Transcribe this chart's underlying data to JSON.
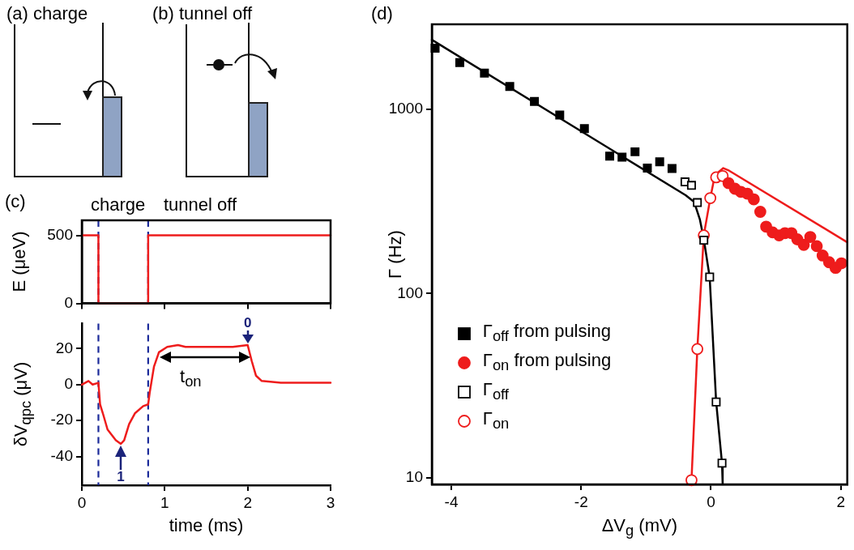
{
  "chart_data": [
    {
      "type": "other",
      "title": "(a) charge"
    },
    {
      "type": "other",
      "title": "(b) tunnel off"
    },
    {
      "type": "line",
      "title": "(c)",
      "ylabel": "E (μeV)",
      "x": [
        0,
        0.2,
        0.2,
        0.8,
        0.8,
        3
      ],
      "series": [
        {
          "color": "#ee1c1c",
          "values": [
            500,
            500,
            0,
            0,
            500,
            500
          ]
        }
      ],
      "xlim": [
        0,
        3
      ],
      "xticks": [
        0,
        1,
        2,
        3
      ],
      "ylim": [
        0,
        610
      ],
      "yticks": [
        0,
        500
      ],
      "tick_labels": "y",
      "grid": false,
      "ref_lines": [
        {
          "axis": "x",
          "value": 0.2,
          "color": "#1b2a9a",
          "line_style": "dashed"
        },
        {
          "axis": "x",
          "value": 0.8,
          "color": "#1b2a9a",
          "line_style": "dashed"
        }
      ],
      "annotations": [
        "charge",
        "tunnel off"
      ]
    },
    {
      "type": "line",
      "xlabel": "time (ms)",
      "ylabel": "δV$_{qpc}$ (μV)",
      "x": [
        0,
        0.08,
        0.13,
        0.2,
        0.22,
        0.26,
        0.31,
        0.41,
        0.47,
        0.51,
        0.57,
        0.64,
        0.74,
        0.8,
        0.82,
        0.87,
        0.93,
        1.03,
        1.16,
        1.25,
        1.45,
        1.62,
        1.82,
        2.0,
        2.05,
        2.1,
        2.17,
        2.4,
        2.7,
        3
      ],
      "series": [
        {
          "color": "#ee1c1c",
          "values": [
            0,
            2,
            0,
            1,
            -11,
            -17,
            -25,
            -31,
            -33,
            -31,
            -22,
            -16,
            -12,
            -11,
            -4,
            10,
            18,
            21,
            22,
            21,
            21,
            21,
            21,
            22,
            13,
            5,
            2,
            1,
            1,
            1
          ]
        }
      ],
      "xlim": [
        0,
        3
      ],
      "xticks": [
        0,
        1,
        2,
        3
      ],
      "ylim": [
        -56,
        34
      ],
      "yticks": [
        -40,
        -20,
        0,
        20
      ],
      "grid": false,
      "ref_lines": [
        {
          "axis": "x",
          "value": 0.2,
          "color": "#1b2a9a",
          "line_style": "dashed"
        },
        {
          "axis": "x",
          "value": 0.8,
          "color": "#1b2a9a",
          "line_style": "dashed"
        }
      ],
      "annotations": [
        {
          "text": "0",
          "x": 2,
          "y": 22
        },
        {
          "text": "1",
          "x": 0.47,
          "y": -33
        },
        "t$_{on}$"
      ]
    },
    {
      "type": "scatter",
      "title": "(d)",
      "xlabel": "ΔV$_{g}$  (mV)",
      "ylabel": "Γ  (Hz)",
      "log": "y",
      "grid": false,
      "legend": "bottom left",
      "xlim": [
        -4.3,
        2.1
      ],
      "xticks": [
        -4,
        -2,
        0,
        2
      ],
      "ylim": [
        9.2,
        2900
      ],
      "yticks": [
        10,
        100,
        1000
      ],
      "series": [
        {
          "name": "Γ$_{off}$ from pulsing",
          "color": "#000000",
          "marker": "square",
          "x": [
            -4.25,
            -3.87,
            -3.49,
            -3.1,
            -2.72,
            -2.33,
            -1.95,
            -1.56,
            -1.37,
            -1.17,
            -0.98,
            -0.79,
            -0.6
          ],
          "values": [
            2150,
            1795,
            1575,
            1333,
            1104,
            933,
            787,
            558,
            551,
            589,
            480,
            519,
            478
          ]
        },
        {
          "name": "Γ$_{on}$ from pulsing",
          "color": "#ee1c1c",
          "marker": "circle",
          "x": [
            0.27,
            0.37,
            0.46,
            0.56,
            0.66,
            0.76,
            0.85,
            0.95,
            1.05,
            1.14,
            1.24,
            1.33,
            1.43,
            1.53,
            1.63,
            1.72,
            1.82,
            1.92,
            2.01
          ],
          "values": [
            398,
            371,
            357,
            349,
            325,
            278,
            231,
            215,
            207,
            213,
            213,
            197,
            184,
            203,
            181,
            161,
            148,
            138,
            146
          ]
        },
        {
          "name": "Γ$_{off}$",
          "color": "#000000",
          "marker": "square-open",
          "x": [
            -0.4,
            -0.3,
            -0.21,
            -0.11,
            -0.02,
            0.08,
            0.17
          ],
          "values": [
            404,
            387,
            312,
            195,
            123,
            25.8,
            12
          ]
        },
        {
          "name": "Γ$_{on}$",
          "color": "#ee1c1c",
          "marker": "circle-open",
          "x": [
            -0.3,
            -0.21,
            -0.11,
            -0.01,
            0.08,
            0.18
          ],
          "values": [
            9.7,
            50,
            207,
            330,
            428,
            435
          ]
        },
        {
          "type": "line",
          "color": "#000000",
          "x": [
            -4.3,
            -0.39,
            -0.26,
            -0.17,
            -0.11,
            -0.02,
            0.08,
            0.17,
            0.18
          ],
          "values": [
            2390,
            342,
            315,
            252,
            197,
            123,
            25.8,
            12,
            9.3
          ]
        },
        {
          "type": "line",
          "color": "#ee1c1c",
          "x": [
            -0.35,
            -0.3,
            -0.21,
            -0.11,
            -0.01,
            0.06,
            0.19,
            0.28,
            2.1
          ],
          "values": [
            9.3,
            9.7,
            50,
            208,
            330,
            440,
            480,
            465,
            190
          ]
        }
      ]
    }
  ]
}
